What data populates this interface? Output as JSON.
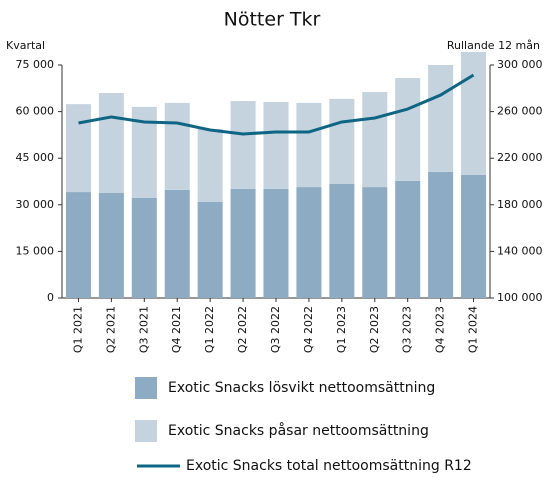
{
  "chart_data": {
    "type": "bar",
    "stacked": true,
    "title": "Nötter Tkr",
    "ylabel": "Kvartal",
    "y2label": "Rullande 12 mån",
    "categories": [
      "Q1 2021",
      "Q2 2021",
      "Q3 2021",
      "Q4 2021",
      "Q1 2022",
      "Q2 2022",
      "Q3 2022",
      "Q4 2022",
      "Q1 2023",
      "Q2 2023",
      "Q3 2023",
      "Q4 2023",
      "Q1 2024"
    ],
    "series": [
      {
        "name": "Exotic Snacks lösvikt nettoomsättning",
        "color": "#8dabc2",
        "type": "bar",
        "values": [
          34100,
          33800,
          32200,
          34800,
          30900,
          35100,
          35100,
          35700,
          36700,
          35700,
          37700,
          40600,
          39600
        ]
      },
      {
        "name": "Exotic Snacks påsar nettoomsättning",
        "color": "#c5d3df",
        "type": "bar",
        "values": [
          28300,
          32200,
          29300,
          28000,
          23500,
          28300,
          28000,
          27100,
          27400,
          30600,
          33100,
          34400,
          39600
        ]
      },
      {
        "name": "Exotic Snacks total nettoomsättning R12",
        "color": "#0f6584",
        "type": "line",
        "axis": "y2",
        "values": [
          250200,
          255400,
          251100,
          250200,
          244200,
          240800,
          242500,
          242500,
          251100,
          254500,
          262200,
          274200,
          291400
        ]
      }
    ],
    "ylim": [
      0,
      75000
    ],
    "yticks": [
      0,
      {
        "value": 15000,
        "label": "15 000"
      },
      {
        "value": 30000,
        "label": "30 000"
      },
      {
        "value": 45000,
        "label": "45 000"
      },
      {
        "value": 60000,
        "label": "60 000"
      },
      {
        "value": 75000,
        "label": "75 000"
      }
    ],
    "y2lim": [
      100000,
      300000
    ],
    "y2ticks": [
      {
        "value": 100000,
        "label": "100 000"
      },
      {
        "value": 140000,
        "label": "140 000"
      },
      {
        "value": 180000,
        "label": "180 000"
      },
      {
        "value": 220000,
        "label": "220 000"
      },
      {
        "value": 260000,
        "label": "260 000"
      },
      {
        "value": 300000,
        "label": "300 000"
      }
    ],
    "grid": false
  }
}
